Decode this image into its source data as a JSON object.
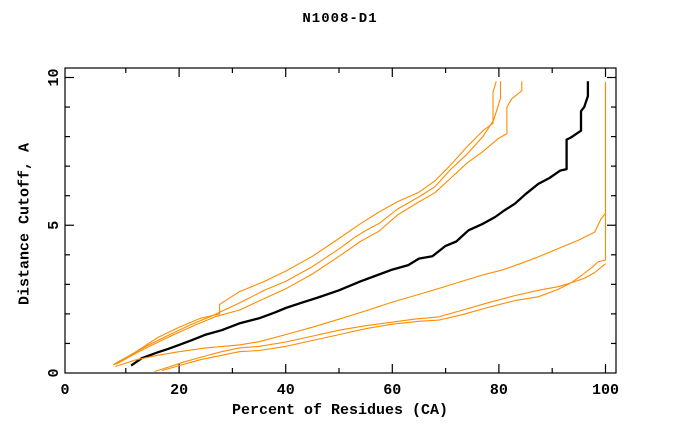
{
  "window": {
    "background": "#ffffff"
  },
  "chart_data": {
    "type": "line",
    "title": "N1008-D1",
    "xlabel": "Percent of Residues (CA)",
    "ylabel": "Distance Cutoff, A",
    "grid": false,
    "legend": "none",
    "x_axis": {
      "min": 0,
      "max": 100,
      "major_ticks": [
        0,
        20,
        40,
        60,
        80,
        100
      ],
      "minor_ticks": [
        10,
        30,
        50,
        70,
        90
      ],
      "tick_labels": [
        "0",
        "20",
        "40",
        "60",
        "80",
        "100"
      ]
    },
    "y_axis": {
      "min": 0,
      "max": 10,
      "major_ticks": [
        0,
        5,
        10
      ],
      "minor_ticks": [
        1,
        2,
        3,
        4,
        6,
        7,
        8,
        9
      ],
      "tick_labels": [
        "0",
        "5",
        "10"
      ]
    },
    "colors": {
      "main": "#000000",
      "other": "#ff8c00"
    },
    "series": [
      {
        "name": "black-main",
        "color": "#000000",
        "width": 2.3,
        "points": [
          [
            11,
            0.25
          ],
          [
            13,
            0.5
          ],
          [
            16,
            0.7
          ],
          [
            18,
            0.82
          ],
          [
            20,
            0.95
          ],
          [
            22.5,
            1.12
          ],
          [
            25,
            1.3
          ],
          [
            28,
            1.45
          ],
          [
            31.3,
            1.68
          ],
          [
            35,
            1.85
          ],
          [
            38,
            2.05
          ],
          [
            40,
            2.2
          ],
          [
            43,
            2.38
          ],
          [
            46,
            2.55
          ],
          [
            50,
            2.8
          ],
          [
            54,
            3.1
          ],
          [
            57,
            3.3
          ],
          [
            60,
            3.5
          ],
          [
            63,
            3.65
          ],
          [
            65,
            3.87
          ],
          [
            67.5,
            3.95
          ],
          [
            70,
            4.3
          ],
          [
            72,
            4.45
          ],
          [
            74.3,
            4.83
          ],
          [
            77,
            5.05
          ],
          [
            79.3,
            5.28
          ],
          [
            81,
            5.5
          ],
          [
            83,
            5.73
          ],
          [
            85,
            6.05
          ],
          [
            87.4,
            6.4
          ],
          [
            89.5,
            6.6
          ],
          [
            91.5,
            6.85
          ],
          [
            92.7,
            6.9
          ],
          [
            92.7,
            7.9
          ],
          [
            93.5,
            7.97
          ],
          [
            95.4,
            8.2
          ],
          [
            95.4,
            8.86
          ],
          [
            96,
            9.0
          ],
          [
            96.7,
            9.37
          ],
          [
            96.7,
            9.87
          ]
        ]
      },
      {
        "name": "orange-steep-1",
        "color": "#ff8c00",
        "width": 1.1,
        "points": [
          [
            7.6,
            0.27
          ],
          [
            10,
            0.5
          ],
          [
            13,
            0.85
          ],
          [
            16,
            1.2
          ],
          [
            20,
            1.55
          ],
          [
            24,
            1.85
          ],
          [
            27.6,
            2.0
          ],
          [
            27.6,
            2.32
          ],
          [
            31.3,
            2.75
          ],
          [
            36,
            3.1
          ],
          [
            40,
            3.45
          ],
          [
            45,
            3.95
          ],
          [
            50,
            4.55
          ],
          [
            54,
            5.05
          ],
          [
            57.5,
            5.45
          ],
          [
            61,
            5.8
          ],
          [
            65,
            6.12
          ],
          [
            68,
            6.5
          ],
          [
            71,
            7.05
          ],
          [
            74,
            7.65
          ],
          [
            77,
            8.2
          ],
          [
            78.9,
            8.45
          ],
          [
            78.9,
            9.5
          ],
          [
            79.5,
            9.87
          ]
        ]
      },
      {
        "name": "orange-steep-2",
        "color": "#ff8c00",
        "width": 1.1,
        "points": [
          [
            7.8,
            0.3
          ],
          [
            11,
            0.62
          ],
          [
            14,
            0.92
          ],
          [
            18,
            1.28
          ],
          [
            22,
            1.62
          ],
          [
            26,
            1.92
          ],
          [
            31.3,
            2.37
          ],
          [
            36,
            2.8
          ],
          [
            40,
            3.1
          ],
          [
            45,
            3.6
          ],
          [
            50,
            4.2
          ],
          [
            53,
            4.6
          ],
          [
            55,
            4.82
          ],
          [
            57.5,
            5.06
          ],
          [
            61,
            5.55
          ],
          [
            65,
            5.96
          ],
          [
            68,
            6.3
          ],
          [
            71,
            6.9
          ],
          [
            74,
            7.4
          ],
          [
            77,
            8.0
          ],
          [
            79,
            8.55
          ],
          [
            80.3,
            9.3
          ],
          [
            80.3,
            9.87
          ]
        ]
      },
      {
        "name": "orange-steep-3",
        "color": "#ff8c00",
        "width": 1.1,
        "points": [
          [
            8.2,
            0.3
          ],
          [
            12,
            0.68
          ],
          [
            15,
            0.95
          ],
          [
            19,
            1.3
          ],
          [
            23,
            1.62
          ],
          [
            27,
            1.92
          ],
          [
            31.3,
            2.13
          ],
          [
            36,
            2.52
          ],
          [
            40,
            2.85
          ],
          [
            45,
            3.35
          ],
          [
            50,
            3.95
          ],
          [
            54,
            4.45
          ],
          [
            57.5,
            4.8
          ],
          [
            61,
            5.35
          ],
          [
            65,
            5.79
          ],
          [
            68,
            6.1
          ],
          [
            71,
            6.6
          ],
          [
            74,
            7.1
          ],
          [
            77,
            7.5
          ],
          [
            80,
            7.95
          ],
          [
            81.5,
            8.1
          ],
          [
            81.5,
            9.0
          ],
          [
            82.4,
            9.28
          ],
          [
            84.3,
            9.55
          ],
          [
            84.3,
            9.87
          ]
        ]
      },
      {
        "name": "orange-mid",
        "color": "#ff8c00",
        "width": 1.1,
        "points": [
          [
            8,
            0.22
          ],
          [
            12,
            0.45
          ],
          [
            16,
            0.6
          ],
          [
            20,
            0.72
          ],
          [
            25,
            0.85
          ],
          [
            31.3,
            0.95
          ],
          [
            35,
            1.06
          ],
          [
            40,
            1.3
          ],
          [
            45,
            1.55
          ],
          [
            50,
            1.82
          ],
          [
            55,
            2.1
          ],
          [
            60,
            2.4
          ],
          [
            65,
            2.66
          ],
          [
            68.7,
            2.86
          ],
          [
            73,
            3.1
          ],
          [
            77,
            3.32
          ],
          [
            80.5,
            3.48
          ],
          [
            84,
            3.7
          ],
          [
            87.4,
            3.93
          ],
          [
            91.1,
            4.21
          ],
          [
            95,
            4.5
          ],
          [
            98,
            4.77
          ],
          [
            99.2,
            5.23
          ],
          [
            100,
            5.4
          ],
          [
            100,
            9.85
          ]
        ]
      },
      {
        "name": "orange-low-1",
        "color": "#ff8c00",
        "width": 1.1,
        "points": [
          [
            15.4,
            0.05
          ],
          [
            18,
            0.2
          ],
          [
            21,
            0.38
          ],
          [
            25,
            0.58
          ],
          [
            28,
            0.72
          ],
          [
            31.3,
            0.85
          ],
          [
            35,
            0.9
          ],
          [
            40,
            1.05
          ],
          [
            45,
            1.25
          ],
          [
            50,
            1.45
          ],
          [
            55,
            1.6
          ],
          [
            60,
            1.72
          ],
          [
            64,
            1.82
          ],
          [
            68.7,
            1.9
          ],
          [
            73,
            2.12
          ],
          [
            78,
            2.38
          ],
          [
            83,
            2.62
          ],
          [
            87.4,
            2.8
          ],
          [
            91.1,
            2.92
          ],
          [
            93.5,
            3.05
          ],
          [
            96,
            3.2
          ],
          [
            98,
            3.4
          ],
          [
            100,
            3.7
          ]
        ]
      },
      {
        "name": "orange-low-2",
        "color": "#ff8c00",
        "width": 1.1,
        "points": [
          [
            16.8,
            0.08
          ],
          [
            20,
            0.25
          ],
          [
            24,
            0.45
          ],
          [
            28,
            0.6
          ],
          [
            31.3,
            0.72
          ],
          [
            35,
            0.76
          ],
          [
            40,
            0.9
          ],
          [
            45,
            1.1
          ],
          [
            50,
            1.3
          ],
          [
            55,
            1.5
          ],
          [
            60,
            1.65
          ],
          [
            65,
            1.75
          ],
          [
            68.7,
            1.79
          ],
          [
            73,
            1.97
          ],
          [
            78,
            2.22
          ],
          [
            83,
            2.45
          ],
          [
            87.4,
            2.58
          ],
          [
            91.1,
            2.83
          ],
          [
            93.5,
            3.05
          ],
          [
            95.5,
            3.3
          ],
          [
            97.5,
            3.58
          ],
          [
            98.6,
            3.76
          ],
          [
            100,
            3.82
          ],
          [
            100,
            9.8
          ]
        ]
      }
    ]
  }
}
